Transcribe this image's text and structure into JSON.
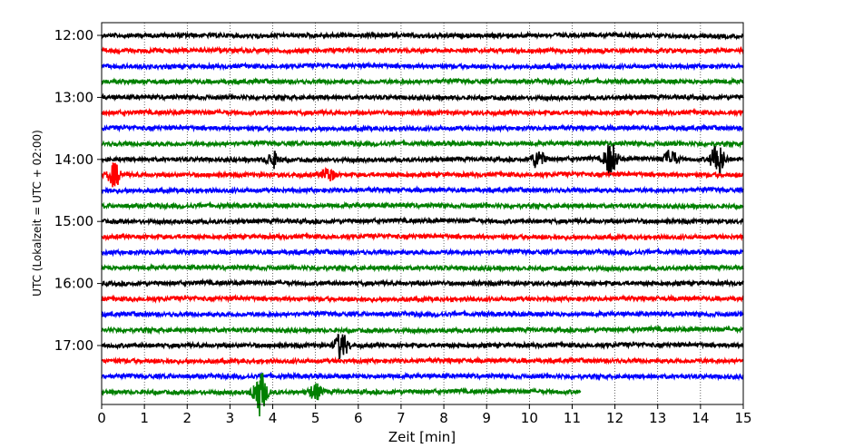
{
  "chart_data": {
    "type": "line",
    "title": "",
    "xlabel": "Zeit  [min]",
    "ylabel": "UTC (Lokalzeit = UTC + 02:00)",
    "xlim": [
      0,
      15
    ],
    "x_ticks": [
      "0",
      "1",
      "2",
      "3",
      "4",
      "5",
      "6",
      "7",
      "8",
      "9",
      "10",
      "11",
      "12",
      "13",
      "14",
      "15"
    ],
    "y_ticks": [
      "12:00",
      "13:00",
      "14:00",
      "15:00",
      "16:00",
      "17:00"
    ],
    "grid": "vertical dotted at each minute",
    "colors": [
      "#000000",
      "#ff0000",
      "#0000ff",
      "#008000"
    ],
    "rows": [
      "12:00",
      "12:15",
      "12:30",
      "12:45",
      "13:00",
      "13:15",
      "13:30",
      "13:45",
      "14:00",
      "14:15",
      "14:30",
      "14:45",
      "15:00",
      "15:15",
      "15:30",
      "15:45",
      "16:00",
      "16:15",
      "16:30",
      "16:45",
      "17:00",
      "17:15",
      "17:30",
      "17:45"
    ],
    "last_row_end_min": 11.2,
    "events": [
      {
        "row": "14:00",
        "min": 4.0,
        "amp": 0.6
      },
      {
        "row": "14:00",
        "min": 10.2,
        "amp": 0.7
      },
      {
        "row": "14:00",
        "min": 11.9,
        "amp": 1.3
      },
      {
        "row": "14:00",
        "min": 13.3,
        "amp": 0.7
      },
      {
        "row": "14:00",
        "min": 14.4,
        "amp": 1.4
      },
      {
        "row": "14:15",
        "min": 0.3,
        "amp": 0.9
      },
      {
        "row": "14:15",
        "min": 5.3,
        "amp": 0.5
      },
      {
        "row": "17:00",
        "min": 5.6,
        "amp": 1.1
      },
      {
        "row": "17:45",
        "min": 3.7,
        "amp": 1.8
      },
      {
        "row": "17:45",
        "min": 5.0,
        "amp": 0.6
      }
    ]
  }
}
